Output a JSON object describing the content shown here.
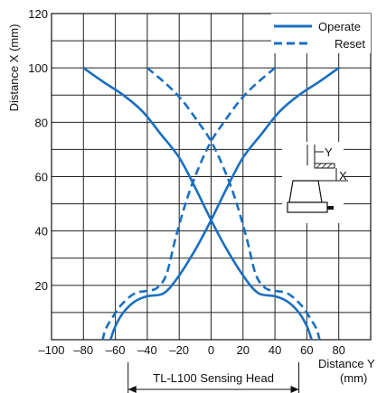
{
  "chart_data": {
    "type": "line",
    "ylabel": "Distance X (mm)",
    "xlabel_line1": "Distance Y",
    "xlabel_line2": "(mm)",
    "xlim": [
      -100,
      100
    ],
    "ylim": [
      0,
      120
    ],
    "x_ticks": [
      -100,
      -80,
      -60,
      -40,
      -20,
      0,
      20,
      40,
      60,
      80
    ],
    "x_tick_labels": [
      "–100",
      "–80",
      "–60",
      "–40",
      "–20",
      "0",
      "20",
      "40",
      "60",
      "80"
    ],
    "y_ticks": [
      20,
      40,
      60,
      80,
      100,
      120
    ],
    "grid": true,
    "legend_position": "top-right",
    "series": [
      {
        "name": "Operate",
        "style": "solid",
        "color": "#1a6fc0",
        "right_branch": [
          [
            -80,
            100
          ],
          [
            -68,
            95
          ],
          [
            -55,
            90
          ],
          [
            -43,
            84
          ],
          [
            -32,
            76
          ],
          [
            -20,
            67
          ],
          [
            -10,
            56
          ],
          [
            0,
            44
          ],
          [
            10,
            33
          ],
          [
            22,
            22
          ],
          [
            30,
            17
          ],
          [
            40,
            16
          ],
          [
            48,
            14
          ],
          [
            55,
            10
          ],
          [
            60,
            5
          ],
          [
            63,
            0
          ]
        ],
        "left_branch": [
          [
            80,
            100
          ],
          [
            68,
            95
          ],
          [
            55,
            90
          ],
          [
            43,
            84
          ],
          [
            32,
            76
          ],
          [
            20,
            67
          ],
          [
            10,
            56
          ],
          [
            0,
            44
          ],
          [
            -10,
            33
          ],
          [
            -22,
            22
          ],
          [
            -30,
            17
          ],
          [
            -40,
            16
          ],
          [
            -48,
            14
          ],
          [
            -55,
            10
          ],
          [
            -60,
            5
          ],
          [
            -63,
            0
          ]
        ]
      },
      {
        "name": "Reset",
        "style": "dashed",
        "color": "#1a6fc0",
        "right_branch": [
          [
            -40,
            100
          ],
          [
            -28,
            94
          ],
          [
            -18,
            88
          ],
          [
            -8,
            80
          ],
          [
            0,
            73
          ],
          [
            8,
            63
          ],
          [
            15,
            52
          ],
          [
            22,
            38
          ],
          [
            28,
            24
          ],
          [
            34,
            19
          ],
          [
            40,
            18
          ],
          [
            48,
            17
          ],
          [
            56,
            13
          ],
          [
            62,
            8
          ],
          [
            66,
            4
          ],
          [
            68,
            0
          ]
        ],
        "left_branch": [
          [
            40,
            100
          ],
          [
            28,
            94
          ],
          [
            18,
            88
          ],
          [
            8,
            80
          ],
          [
            0,
            73
          ],
          [
            -8,
            63
          ],
          [
            -15,
            52
          ],
          [
            -22,
            38
          ],
          [
            -28,
            24
          ],
          [
            -34,
            19
          ],
          [
            -40,
            18
          ],
          [
            -48,
            17
          ],
          [
            -56,
            13
          ],
          [
            -62,
            8
          ],
          [
            -66,
            4
          ],
          [
            -68,
            0
          ]
        ]
      }
    ],
    "annotations": {
      "sensing_head_label": "TL-L100 Sensing Head",
      "sensing_head_extent": [
        -52,
        55
      ],
      "inset_label_y": "Y",
      "inset_label_x": "X"
    }
  }
}
